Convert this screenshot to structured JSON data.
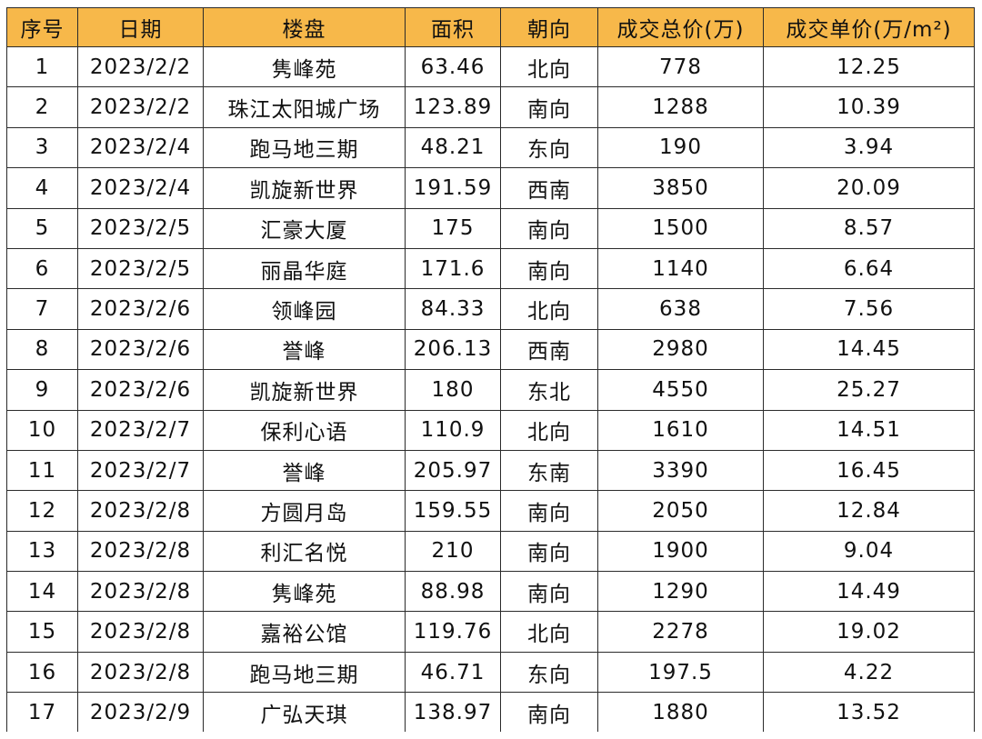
{
  "table": {
    "headers": [
      "序号",
      "日期",
      "楼盘",
      "面积",
      "朝向",
      "成交总价(万)",
      "成交单价(万/m²)"
    ],
    "rows": [
      [
        "1",
        "2023/2/2",
        "隽峰苑",
        "63.46",
        "北向",
        "778",
        "12.25"
      ],
      [
        "2",
        "2023/2/2",
        "珠江太阳城广场",
        "123.89",
        "南向",
        "1288",
        "10.39"
      ],
      [
        "3",
        "2023/2/4",
        "跑马地三期",
        "48.21",
        "东向",
        "190",
        "3.94"
      ],
      [
        "4",
        "2023/2/4",
        "凯旋新世界",
        "191.59",
        "西南",
        "3850",
        "20.09"
      ],
      [
        "5",
        "2023/2/5",
        "汇豪大厦",
        "175",
        "南向",
        "1500",
        "8.57"
      ],
      [
        "6",
        "2023/2/5",
        "丽晶华庭",
        "171.6",
        "南向",
        "1140",
        "6.64"
      ],
      [
        "7",
        "2023/2/6",
        "领峰园",
        "84.33",
        "北向",
        "638",
        "7.56"
      ],
      [
        "8",
        "2023/2/6",
        "誉峰",
        "206.13",
        "西南",
        "2980",
        "14.45"
      ],
      [
        "9",
        "2023/2/6",
        "凯旋新世界",
        "180",
        "东北",
        "4550",
        "25.27"
      ],
      [
        "10",
        "2023/2/7",
        "保利心语",
        "110.9",
        "北向",
        "1610",
        "14.51"
      ],
      [
        "11",
        "2023/2/7",
        "誉峰",
        "205.97",
        "东南",
        "3390",
        "16.45"
      ],
      [
        "12",
        "2023/2/8",
        "方圆月岛",
        "159.55",
        "南向",
        "2050",
        "12.84"
      ],
      [
        "13",
        "2023/2/8",
        "利汇名悦",
        "210",
        "南向",
        "1900",
        "9.04"
      ],
      [
        "14",
        "2023/2/8",
        "隽峰苑",
        "88.98",
        "南向",
        "1290",
        "14.49"
      ],
      [
        "15",
        "2023/2/8",
        "嘉裕公馆",
        "119.76",
        "北向",
        "2278",
        "19.02"
      ],
      [
        "16",
        "2023/2/8",
        "跑马地三期",
        "46.71",
        "东向",
        "197.5",
        "4.22"
      ],
      [
        "17",
        "2023/2/9",
        "广弘天琪",
        "138.97",
        "南向",
        "1880",
        "13.52"
      ]
    ]
  },
  "colors": {
    "header_background": "#f7b84a",
    "border": "#2b2b2b",
    "text": "#111111"
  }
}
